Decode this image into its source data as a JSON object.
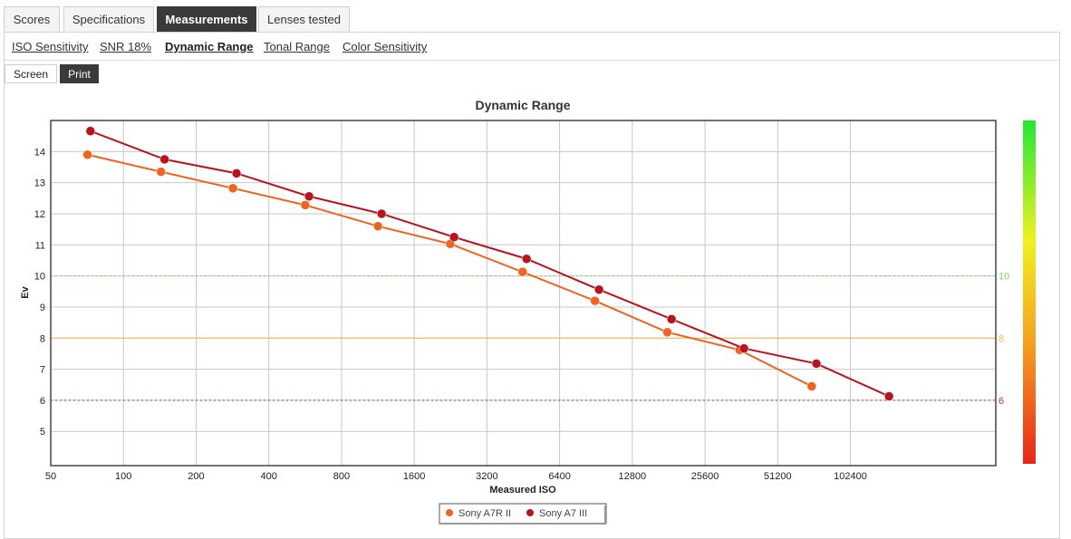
{
  "tabs": [
    {
      "label": "Scores",
      "active": false
    },
    {
      "label": "Specifications",
      "active": false
    },
    {
      "label": "Measurements",
      "active": true
    },
    {
      "label": "Lenses tested",
      "active": false
    }
  ],
  "subnav": [
    {
      "label": "ISO Sensitivity",
      "active": false
    },
    {
      "label": "SNR 18%",
      "active": false
    },
    {
      "label": "Dynamic Range",
      "active": true
    },
    {
      "label": "Tonal Range",
      "active": false
    },
    {
      "label": "Color Sensitivity",
      "active": false
    }
  ],
  "view_toggle": {
    "screen_label": "Screen",
    "print_label": "Print",
    "selected": "Print"
  },
  "chart_data": {
    "type": "line",
    "title": "Dynamic Range",
    "xlabel": "Measured ISO",
    "ylabel": "Ev",
    "x_scale": "log2",
    "x_ticks": [
      "50",
      "100",
      "200",
      "400",
      "800",
      "1600",
      "3200",
      "6400",
      "12800",
      "25600",
      "51200",
      "102400"
    ],
    "x_tick_values": [
      50,
      100,
      200,
      400,
      800,
      1600,
      3200,
      6400,
      12800,
      25600,
      51200,
      102400
    ],
    "xlim": [
      50,
      409600
    ],
    "ylim": [
      3.9,
      15.0
    ],
    "y_ticks": [
      5,
      6,
      7,
      8,
      9,
      10,
      11,
      12,
      13,
      14
    ],
    "grid": true,
    "reference_lines": [
      {
        "value": 10,
        "label": "10",
        "color": "#7fd36a",
        "style": "dotted"
      },
      {
        "value": 8,
        "label": "8",
        "color": "#f2b955",
        "style": "solid"
      },
      {
        "value": 6,
        "label": "6",
        "color": "#c0392b",
        "style": "dotted"
      }
    ],
    "color_scale": {
      "colors": [
        "#e8261c",
        "#f5a020",
        "#f0f020",
        "#22e838"
      ],
      "range": [
        4,
        15
      ]
    },
    "series": [
      {
        "name": "Sony A7R II",
        "color": "#ee6420",
        "points": [
          {
            "x": 71,
            "y": 13.9
          },
          {
            "x": 143,
            "y": 13.35
          },
          {
            "x": 284,
            "y": 12.82
          },
          {
            "x": 566,
            "y": 12.28
          },
          {
            "x": 1132,
            "y": 11.6
          },
          {
            "x": 2256,
            "y": 11.03
          },
          {
            "x": 4496,
            "y": 10.13
          },
          {
            "x": 8962,
            "y": 9.2
          },
          {
            "x": 17885,
            "y": 8.19
          },
          {
            "x": 35594,
            "y": 7.62
          },
          {
            "x": 70811,
            "y": 6.45
          }
        ]
      },
      {
        "name": "Sony A7 III",
        "color": "#b8141e",
        "points": [
          {
            "x": 73,
            "y": 14.66
          },
          {
            "x": 148,
            "y": 13.75
          },
          {
            "x": 294,
            "y": 13.3
          },
          {
            "x": 587,
            "y": 12.56
          },
          {
            "x": 1172,
            "y": 12.0
          },
          {
            "x": 2340,
            "y": 11.25
          },
          {
            "x": 4671,
            "y": 10.55
          },
          {
            "x": 9323,
            "y": 9.56
          },
          {
            "x": 18608,
            "y": 8.61
          },
          {
            "x": 37127,
            "y": 7.67
          },
          {
            "x": 74093,
            "y": 7.18
          },
          {
            "x": 147962,
            "y": 6.13
          }
        ]
      }
    ],
    "legend": {
      "placement": "bottom-center"
    }
  }
}
